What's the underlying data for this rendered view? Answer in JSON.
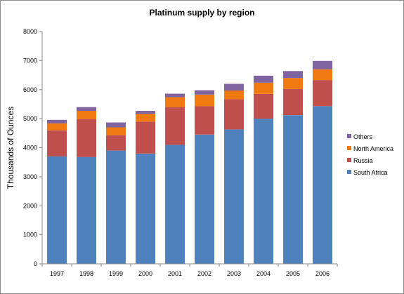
{
  "chart_data": {
    "type": "bar",
    "stacked": true,
    "title": "Platinum supply by region",
    "xlabel": "",
    "ylabel": "Thousands of Ounces",
    "ylim": [
      0,
      8000
    ],
    "yticks": [
      0,
      1000,
      2000,
      3000,
      4000,
      5000,
      6000,
      7000,
      8000
    ],
    "grid": false,
    "legend_position": "right",
    "categories": [
      "1997",
      "1998",
      "1999",
      "2000",
      "2001",
      "2002",
      "2003",
      "2004",
      "2005",
      "2006"
    ],
    "series": [
      {
        "name": "South Africa",
        "color": "#4f81bd",
        "values": [
          3700,
          3680,
          3900,
          3800,
          4100,
          4450,
          4630,
          5000,
          5120,
          5430
        ]
      },
      {
        "name": "Russia",
        "color": "#c0504d",
        "values": [
          900,
          1300,
          530,
          1100,
          1300,
          980,
          1040,
          850,
          900,
          900
        ]
      },
      {
        "name": "North America",
        "color": "#f07a10",
        "values": [
          240,
          290,
          270,
          270,
          340,
          400,
          300,
          390,
          380,
          370
        ]
      },
      {
        "name": "Others",
        "color": "#8064a2",
        "values": [
          120,
          130,
          170,
          100,
          120,
          150,
          230,
          240,
          240,
          290
        ]
      }
    ]
  }
}
